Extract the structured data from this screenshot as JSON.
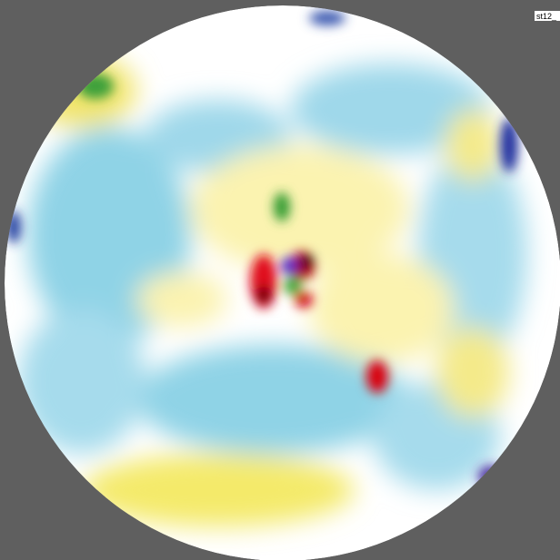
{
  "label": "st12_"
}
